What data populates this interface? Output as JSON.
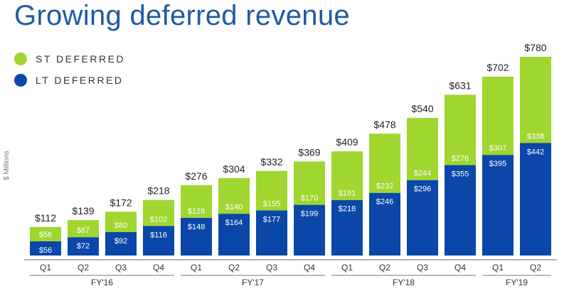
{
  "title": "Growing deferred revenue",
  "legend": [
    {
      "label": "ST DEFERRED",
      "color": "#9fd62f"
    },
    {
      "label": "LT DEFERRED",
      "color": "#0a47a8"
    }
  ],
  "ylabel": "$ Millions",
  "chart_data": {
    "type": "bar",
    "stacked": true,
    "categories": [
      "Q1",
      "Q2",
      "Q3",
      "Q4",
      "Q1",
      "Q2",
      "Q3",
      "Q4",
      "Q1",
      "Q2",
      "Q3",
      "Q4",
      "Q1",
      "Q2"
    ],
    "groups": [
      {
        "label": "FY'16",
        "quarters": 4
      },
      {
        "label": "FY'17",
        "quarters": 4
      },
      {
        "label": "FY'18",
        "quarters": 4
      },
      {
        "label": "FY'19",
        "quarters": 2
      }
    ],
    "series": [
      {
        "name": "LT DEFERRED",
        "color": "#0a47a8",
        "values": [
          56,
          72,
          92,
          116,
          148,
          164,
          177,
          199,
          218,
          246,
          296,
          355,
          395,
          442
        ]
      },
      {
        "name": "ST DEFERRED",
        "color": "#9fd62f",
        "values": [
          56,
          67,
          80,
          102,
          128,
          140,
          155,
          170,
          191,
          232,
          244,
          276,
          307,
          338
        ]
      }
    ],
    "totals": [
      112,
      139,
      172,
      218,
      276,
      304,
      332,
      369,
      409,
      478,
      540,
      631,
      702,
      780
    ],
    "value_prefix": "$",
    "ylabel": "$ Millions",
    "ylim": [
      0,
      780
    ]
  }
}
